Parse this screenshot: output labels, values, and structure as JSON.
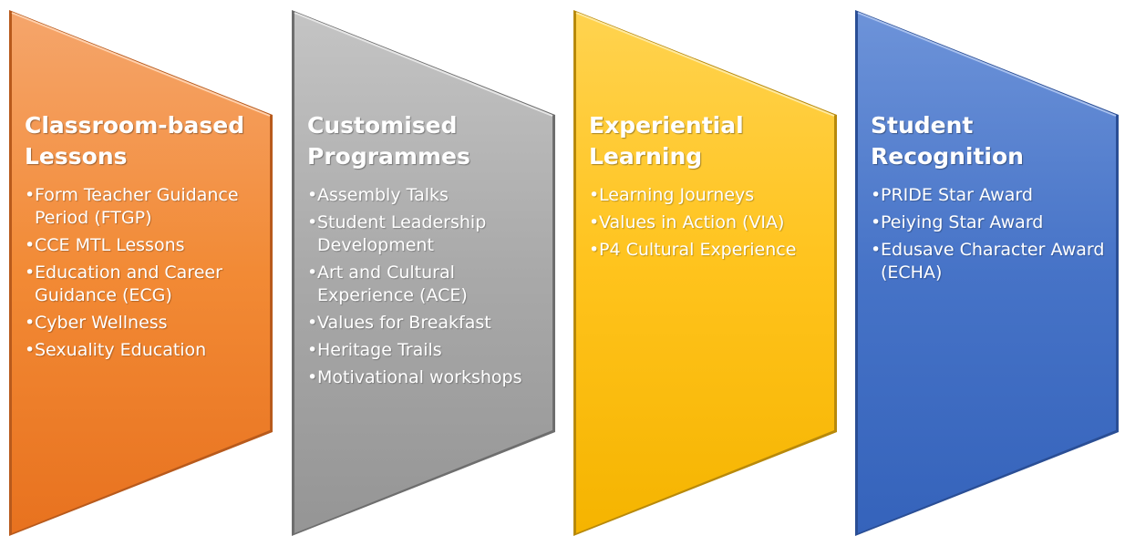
{
  "panels": [
    {
      "title": "Classroom-based Lessons",
      "color": "#F08A3C",
      "items": [
        "Form Teacher Guidance Period (FTGP)",
        "CCE MTL Lessons",
        "Education and Career Guidance (ECG)",
        "Cyber Wellness",
        "Sexuality Education"
      ]
    },
    {
      "title": "Customised Programmes",
      "color": "#A6A6A6",
      "items": [
        "Assembly Talks",
        "Student Leadership Development",
        "Art and Cultural Experience  (ACE)",
        "Values for Breakfast",
        "Heritage Trails",
        "Motivational workshops"
      ]
    },
    {
      "title": "Experiential Learning",
      "color": "#FFC21A",
      "items": [
        "Learning Journeys",
        "Values in Action (VIA)",
        "P4 Cultural Experience"
      ]
    },
    {
      "title": "Student Recognition",
      "color": "#4A77C9",
      "items": [
        "PRIDE Star Award",
        "Peiying Star Award",
        "Edusave Character Award (ECHA)"
      ]
    }
  ]
}
